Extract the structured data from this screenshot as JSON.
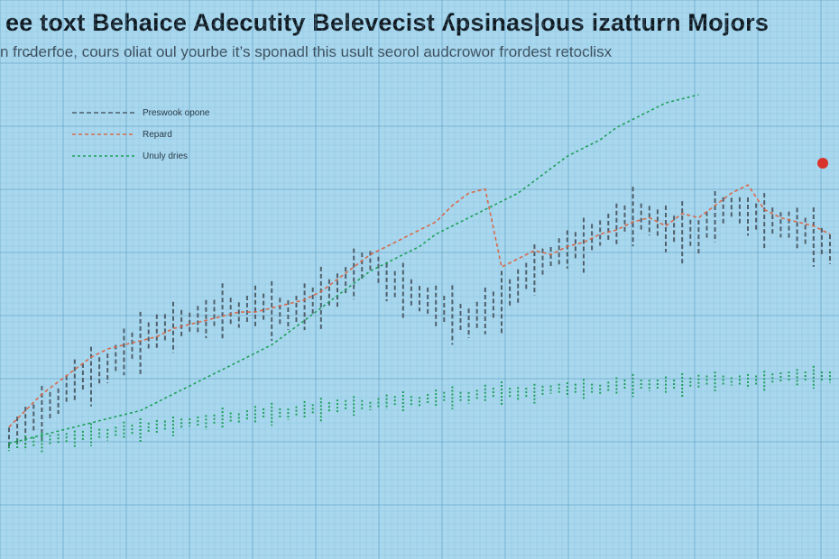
{
  "chart_data": {
    "type": "line",
    "title": "ee toxt Behaice Adecutity Belevecist ʎpsinas|ous izatturn Mojors",
    "subtitle": "n frc̵derfoe, cours oliat oul yourbe it’s sponadl this usult seorol audcrowor frordest retoclisx",
    "xlabel": "",
    "ylabel": "",
    "grid": true,
    "legend_position": "top-left",
    "flag_label": "",
    "colors": {
      "background": "#a9d8ee",
      "grid": "#7fb9d7",
      "grid_major": "#5c9dc2"
    },
    "x": [
      0,
      1,
      2,
      3,
      4,
      5,
      6,
      7,
      8,
      9,
      10,
      11,
      12,
      13,
      14,
      15,
      16,
      17,
      18,
      19,
      20,
      21,
      22,
      23,
      24,
      25,
      26,
      27,
      28,
      29,
      30,
      31,
      32,
      33,
      34,
      35,
      36,
      37,
      38,
      39,
      40,
      41,
      42,
      43,
      44,
      45,
      46,
      47,
      48,
      49,
      50
    ],
    "ylim": [
      0,
      100
    ],
    "series": [
      {
        "name": "Preswook opone",
        "color": "#4f5f6c",
        "dash": "5,3",
        "style": "bars",
        "values": [
          16,
          19,
          22,
          25,
          30,
          31,
          33,
          37,
          39,
          42,
          43,
          44,
          45,
          47,
          46,
          48,
          47,
          46,
          48,
          50,
          52,
          56,
          59,
          54,
          52,
          50,
          48,
          46,
          44,
          47,
          49,
          53,
          57,
          60,
          62,
          63,
          66,
          68,
          70,
          69,
          67,
          66,
          65,
          70,
          72,
          70,
          69,
          68,
          67,
          65,
          62
        ]
      },
      {
        "name": "Repard",
        "color": "#d86a4c",
        "dash": "4,3",
        "style": "line",
        "values": [
          19,
          23,
          27,
          30,
          33,
          36,
          38,
          39,
          40,
          41,
          43,
          44,
          45,
          46,
          47,
          47,
          48,
          49,
          50,
          52,
          55,
          58,
          61,
          63,
          65,
          67,
          69,
          73,
          76,
          77,
          58,
          60,
          62,
          61,
          63,
          64,
          66,
          67,
          69,
          70,
          68,
          71,
          70,
          73,
          76,
          78,
          72,
          70,
          69,
          68,
          66
        ]
      },
      {
        "name": "Unuly dries",
        "color": "#1e9e5a",
        "dash": "3,3",
        "style": "line",
        "values": [
          15,
          16,
          17,
          18,
          19,
          20,
          21,
          22,
          23,
          25,
          27,
          29,
          31,
          33,
          35,
          37,
          39,
          42,
          45,
          48,
          51,
          54,
          57,
          59,
          61,
          63,
          66,
          68,
          70,
          72,
          74,
          76,
          79,
          82,
          85,
          87,
          89,
          92,
          94,
          96,
          98,
          99,
          100,
          null,
          null,
          null,
          null,
          null,
          null,
          null,
          null
        ]
      },
      {
        "name": "",
        "color": "#1e9e5a",
        "dash": "2,2",
        "style": "bars",
        "values": [
          14,
          15,
          15,
          16,
          16,
          17,
          17,
          18,
          18,
          19,
          19,
          20,
          20,
          21,
          21,
          22,
          22,
          22,
          23,
          23,
          24,
          24,
          24,
          25,
          25,
          25,
          26,
          26,
          26,
          27,
          27,
          27,
          27,
          28,
          28,
          28,
          28,
          29,
          29,
          29,
          29,
          29,
          30,
          30,
          30,
          30,
          30,
          31,
          31,
          31,
          31
        ]
      }
    ]
  }
}
